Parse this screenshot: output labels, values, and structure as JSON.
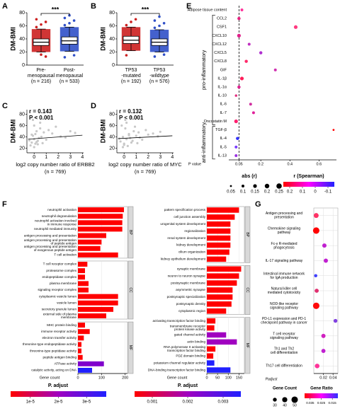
{
  "chart_data": [
    {
      "type": "box",
      "label": "A",
      "ylabel": "DM-BMI",
      "annotation": "***",
      "categories": [
        [
          "Pre-",
          "menopausal",
          "(n = 216)"
        ],
        [
          "Post-",
          "menopausal",
          "(n = 533)"
        ]
      ],
      "boxes": [
        {
          "whislo": 20,
          "q1": 30,
          "med": 35,
          "q3": 40,
          "whishi": 55,
          "outliers": [
            58,
            62,
            66,
            70,
            16,
            13
          ],
          "color": "#cc1f1f"
        },
        {
          "whislo": 21,
          "q1": 32,
          "med": 37,
          "q3": 43,
          "whishi": 58,
          "outliers": [
            61,
            64,
            68,
            72,
            76,
            15,
            12
          ],
          "color": "#3050c8"
        }
      ],
      "ylim": [
        0,
        80
      ],
      "yticks": [
        0,
        20,
        40,
        60,
        80
      ]
    },
    {
      "type": "box",
      "label": "B",
      "ylabel": "DM-BMI",
      "annotation": "***",
      "categories": [
        [
          "TP53",
          "-mutated",
          "(n = 192)"
        ],
        [
          "TP53",
          "-wildtype",
          "(n = 576)"
        ]
      ],
      "boxes": [
        {
          "whislo": 22,
          "q1": 33,
          "med": 38,
          "q3": 44,
          "whishi": 58,
          "outliers": [
            61,
            66,
            70,
            15
          ],
          "color": "#cc1f1f"
        },
        {
          "whislo": 20,
          "q1": 30,
          "med": 35,
          "q3": 40,
          "whishi": 54,
          "outliers": [
            57,
            60,
            64,
            68,
            74,
            16,
            13
          ],
          "color": "#3050c8"
        }
      ],
      "ylim": [
        0,
        80
      ],
      "yticks": [
        0,
        20,
        40,
        60,
        80
      ]
    },
    {
      "type": "scatter",
      "label": "C",
      "ylabel": "DM-BMI",
      "xlabel": "log2 copy number ratio of ERBB2",
      "note": "(n = 769)",
      "annotations": [
        "r = 0.143",
        "P < 0.001"
      ],
      "color": "#c8c8c8",
      "x": [
        -0.2,
        -0.1,
        0,
        0.1,
        0.2,
        0.3,
        -0.3,
        0,
        0.1,
        0.4,
        0.5,
        0.2,
        -0.1,
        0.6,
        0.8,
        1.0,
        1.2,
        0.3,
        0.0,
        -0.2,
        1.5,
        1.8,
        2.2,
        2.6,
        3.0,
        3.4,
        0.5,
        0.7,
        -0.4,
        0.2
      ],
      "y": [
        30,
        42,
        36,
        28,
        50,
        33,
        25,
        60,
        45,
        38,
        55,
        31,
        70,
        40,
        48,
        35,
        52,
        27,
        22,
        44,
        46,
        58,
        41,
        39,
        50,
        47,
        65,
        29,
        34,
        75
      ],
      "trend": {
        "x": [
          -0.5,
          4
        ],
        "y": [
          36,
          43
        ]
      },
      "xlim": [
        -0.6,
        4.1
      ],
      "xticks": [
        0,
        1,
        2,
        3,
        4
      ],
      "ylim": [
        12,
        88
      ],
      "yticks": [
        20,
        40,
        60,
        80
      ]
    },
    {
      "type": "scatter",
      "label": "D",
      "ylabel": "DM-BMI",
      "xlabel": "log2 copy number ratio of MYC",
      "note": "(n = 769)",
      "annotations": [
        "r = 0.132",
        "P < 0.001"
      ],
      "color": "#c8c8c8",
      "x": [
        -0.3,
        -0.1,
        0,
        0.1,
        0.2,
        0.4,
        0.6,
        0.8,
        1.0,
        0.3,
        -0.2,
        0.5,
        1.2,
        1.5,
        1.8,
        2.0,
        2.4,
        2.8,
        0.1,
        0.0,
        0.7,
        0.9,
        -0.4,
        1.1,
        0.2,
        3.0,
        0.4,
        -0.1,
        1.3,
        0.6
      ],
      "y": [
        32,
        40,
        28,
        55,
        36,
        45,
        30,
        50,
        42,
        24,
        60,
        38,
        48,
        35,
        52,
        44,
        46,
        41,
        70,
        26,
        33,
        58,
        37,
        29,
        65,
        49,
        43,
        22,
        39,
        75
      ],
      "trend": {
        "x": [
          -0.5,
          4
        ],
        "y": [
          37,
          42
        ]
      },
      "xlim": [
        -0.6,
        4.1
      ],
      "xticks": [
        0,
        1,
        2,
        3,
        4
      ],
      "ylim": [
        12,
        88
      ],
      "yticks": [
        20,
        40,
        60,
        80
      ]
    },
    {
      "type": "dot",
      "label": "E",
      "xlabel": "P value",
      "categories": [
        "Adipose tissue content",
        "CCL2",
        "CSF1",
        "CXCL10",
        "CXCL12",
        "CXCL5",
        "CXCL8",
        "GIF",
        "IL-1β",
        "IL-1α",
        "IL-10",
        "IL-6",
        "IL-7",
        "Oncostatin M",
        "TGF-β",
        "IL-4",
        "IL-5",
        "IL-13"
      ],
      "label_colors": [
        "#e8261f",
        "#e8261f",
        "#000000",
        "#e8261f",
        "#000000",
        "#000000",
        "#e8261f",
        "#000000",
        "#e8261f",
        "#e8261f",
        "#000000",
        "#000000",
        "#000000",
        "#e8261f",
        "#000000",
        "#e8261f",
        "#e8261f",
        "#000000"
      ],
      "values": [
        0.07,
        0.05,
        0.44,
        0.05,
        0.12,
        0.2,
        0.1,
        0.3,
        0.07,
        0.05,
        0.03,
        0.13,
        0.15,
        0.03,
        0.7,
        0.04,
        0.03,
        0.03
      ],
      "sizes": [
        0.1,
        0.12,
        0.15,
        0.15,
        0.1,
        0.12,
        0.12,
        0.1,
        0.15,
        0.12,
        0.08,
        0.1,
        0.1,
        0.15,
        0.05,
        0.12,
        0.1,
        0.1
      ],
      "colors": [
        "#ff3399",
        "#e8207f",
        "#ff3a80",
        "#e0208a",
        "#c030c0",
        "#b030d0",
        "#ff2a6a",
        "#d030b0",
        "#ff1f5a",
        "#e02090",
        "#e03080",
        "#d030a0",
        "#e0209a",
        "#ff2070",
        "#ff0000",
        "#3333ff",
        "#7a3cff",
        "#9a30e0"
      ],
      "groups": [
        "pro-inflammatory",
        "anti-inflammatory"
      ],
      "vline": 0.05,
      "xlim": [
        -0.02,
        0.72
      ],
      "xticks": [
        0.05,
        0.2,
        0.4,
        0.6
      ],
      "size_legend": {
        "title": "abs (r)",
        "values": [
          0.05,
          0.1,
          0.15,
          0.2,
          0.25
        ]
      },
      "colorbar": {
        "title": "r (Spearman)",
        "lim": [
          0.25,
          -0.15
        ],
        "ticks": [
          0.2,
          0.1,
          0,
          -0.1
        ],
        "colors": [
          "#ff0000",
          "#ff00ff",
          "#2020ff"
        ]
      }
    },
    {
      "type": "bar",
      "label": "F",
      "panels": [
        {
          "xlabel": "Gene count",
          "xlim": [
            0,
            210
          ],
          "xticks": [
            0,
            100,
            200
          ],
          "colorbar": {
            "title": "P. adjust",
            "lim": [
              3e-06,
              3.7e-05
            ],
            "ticks": [
              {
                "value": 1e-05,
                "label": "1e-5"
              },
              {
                "value": 2e-05,
                "label": "2e-5"
              },
              {
                "value": 3e-05,
                "label": "3e-5"
              }
            ],
            "colors": [
              "#ff0000",
              "#a000c0",
              "#2020ff"
            ]
          },
          "facets": [
            {
              "name": "BP",
              "categories": [
                "neutrophil activation",
                "neutrophil degranulation",
                [
                  "neutrophil activation involved",
                  "in immune response"
                ],
                "neutrophil mediated immunity",
                "antigen processing and presentation",
                [
                  "antigen processing and presentation",
                  "of peptide antigen"
                ],
                [
                  "antigen processing and presentation",
                  "of exogenous peptide antigen"
                ],
                "T cell activation"
              ],
              "values": [
                195,
                190,
                188,
                188,
                120,
                100,
                95,
                170
              ],
              "colors": [
                "#ff0000",
                "#ff0000",
                "#ff0000",
                "#ff0000",
                "#ff0000",
                "#ff0000",
                "#ff0000",
                "#ff0000"
              ]
            },
            {
              "name": "CC",
              "categories": [
                "T cell receptor complex",
                "proteasome complex",
                "endopeptidase complex",
                "plasma membrane",
                "signaling receptor complex",
                "cytoplasmic vesicle lumen",
                "vesicle lumen",
                "secretory granule lumen",
                [
                  "external side of plasma",
                  "membrane"
                ]
              ],
              "values": [
                40,
                30,
                30,
                45,
                45,
                170,
                170,
                150,
                120
              ],
              "colors": [
                "#ff0000",
                "#ff0000",
                "#ff0000",
                "#ff0000",
                "#ff0000",
                "#ff0000",
                "#ff0000",
                "#ff0000",
                "#ff0000"
              ]
            },
            {
              "name": "MF",
              "categories": [
                "MHC protein binding",
                "immune receptor activity",
                "electron transfer activity",
                "threonine-type endopeptidase activity",
                "threonine-type peptidase activity",
                "peptide antigen binding",
                "ATPase activity",
                "catalytic activity, acting on DNA"
              ],
              "values": [
                30,
                50,
                25,
                15,
                15,
                20,
                110,
                60
              ],
              "colors": [
                "#ff0000",
                "#ff0000",
                "#ff0000",
                "#ff0000",
                "#ff0000",
                "#ff0000",
                "#8000cc",
                "#2020ff"
              ]
            }
          ]
        },
        {
          "xlabel": "Gene count",
          "xlim": [
            0,
            175
          ],
          "xticks": [
            0,
            50,
            100,
            150
          ],
          "colorbar": {
            "title": "P. adjust",
            "lim": [
              0.0005,
              0.0035
            ],
            "ticks": [
              0.001,
              0.002,
              0.003
            ],
            "colors": [
              "#ff0000",
              "#a000c0",
              "#2020ff"
            ]
          },
          "facets": [
            {
              "name": "BP",
              "categories": [
                "pattern specification process",
                "cell junction assembly",
                "urogenital system development",
                "regionalization",
                "renal system development",
                "kidney development",
                "cilium organization",
                "kidney epithelium development"
              ],
              "values": [
                150,
                130,
                110,
                110,
                110,
                110,
                105,
                90
              ],
              "colors": [
                "#ff0000",
                "#ff0000",
                "#ff0000",
                "#ff0000",
                "#ff0000",
                "#ff0000",
                "#ff0000",
                "#ff0000"
              ]
            },
            {
              "name": "CC",
              "categories": [
                "synaptic membrane",
                "neuron to neuron synapse",
                "postsynaptic membrane",
                "asymmetric synapse",
                "postsynaptic specialization",
                "postsynaptic density",
                "cytoplasmic region"
              ],
              "values": [
                160,
                150,
                140,
                120,
                120,
                115,
                90
              ],
              "colors": [
                "#ff0000",
                "#ff0000",
                "#ff0000",
                "#ff0000",
                "#ff0000",
                "#ff0000",
                "#ff0000"
              ]
            },
            {
              "name": "MF",
              "categories": [
                "activating transcription factor binding",
                [
                  "transmembrane receptor",
                  "protein kinase activity"
                ],
                "gated channel activity",
                "actin binding",
                [
                  "RNA polymerase II activating",
                  "transcription factor binding"
                ],
                "PDZ domain binding",
                "potassium channel regulator activity",
                "DNA-binding transcription factor binding"
              ],
              "values": [
                40,
                35,
                90,
                140,
                40,
                30,
                35,
                110
              ],
              "colors": [
                "#ff0000",
                "#ff0000",
                "#a000c0",
                "#a000c0",
                "#ff0000",
                "#ff0000",
                "#2020ff",
                "#2020ff"
              ]
            }
          ]
        }
      ]
    },
    {
      "type": "dot",
      "label": "G",
      "note": "Padjust",
      "categories": [
        [
          "Antigen processing and",
          "presentation"
        ],
        [
          "Chemokine signaling",
          "pathway"
        ],
        [
          "Fc-γ R-mediated",
          "phagocytosis"
        ],
        "IL-17 signaling pathway",
        [
          "Intestinal immune network",
          "for IgA production"
        ],
        [
          "Natural killer cell",
          "mediated cytotoxicity"
        ],
        [
          "NOD-like receptor",
          "signaling pathway"
        ],
        [
          "PD-L1 expression and PD-1",
          "checkpoint pathway in cancer"
        ],
        [
          "T cell receptor",
          "signaling pathway"
        ],
        [
          "Th1 and Th2",
          "cell differentiation"
        ],
        "Th17 cell differentiation"
      ],
      "values": [
        0.005,
        0.005,
        0.022,
        0.025,
        0.004,
        0.006,
        0.005,
        0.045,
        0.02,
        0.02,
        0.007
      ],
      "sizes": [
        38,
        50,
        33,
        33,
        25,
        32,
        50,
        30,
        33,
        32,
        36
      ],
      "colors": [
        "#ff3366",
        "#ff0000",
        "#c020d0",
        "#c020d0",
        "#4040ff",
        "#e03070",
        "#ff0a0a",
        "#8040e0",
        "#d020c0",
        "#c020d0",
        "#ff3399"
      ],
      "grid": true,
      "xlim": [
        0,
        0.05
      ],
      "xticks": [
        0.02,
        0.04
      ],
      "size_legend": {
        "title": "Gene Count",
        "values": [
          30,
          40,
          50
        ]
      },
      "colorbar": {
        "title": "Gene Ratio",
        "lim": [
          0.04,
          0.01
        ],
        "ticks": [
          0.035,
          0.025,
          0.015
        ],
        "colors": [
          "#ff0000",
          "#ff00ff",
          "#3030ff"
        ]
      }
    }
  ]
}
